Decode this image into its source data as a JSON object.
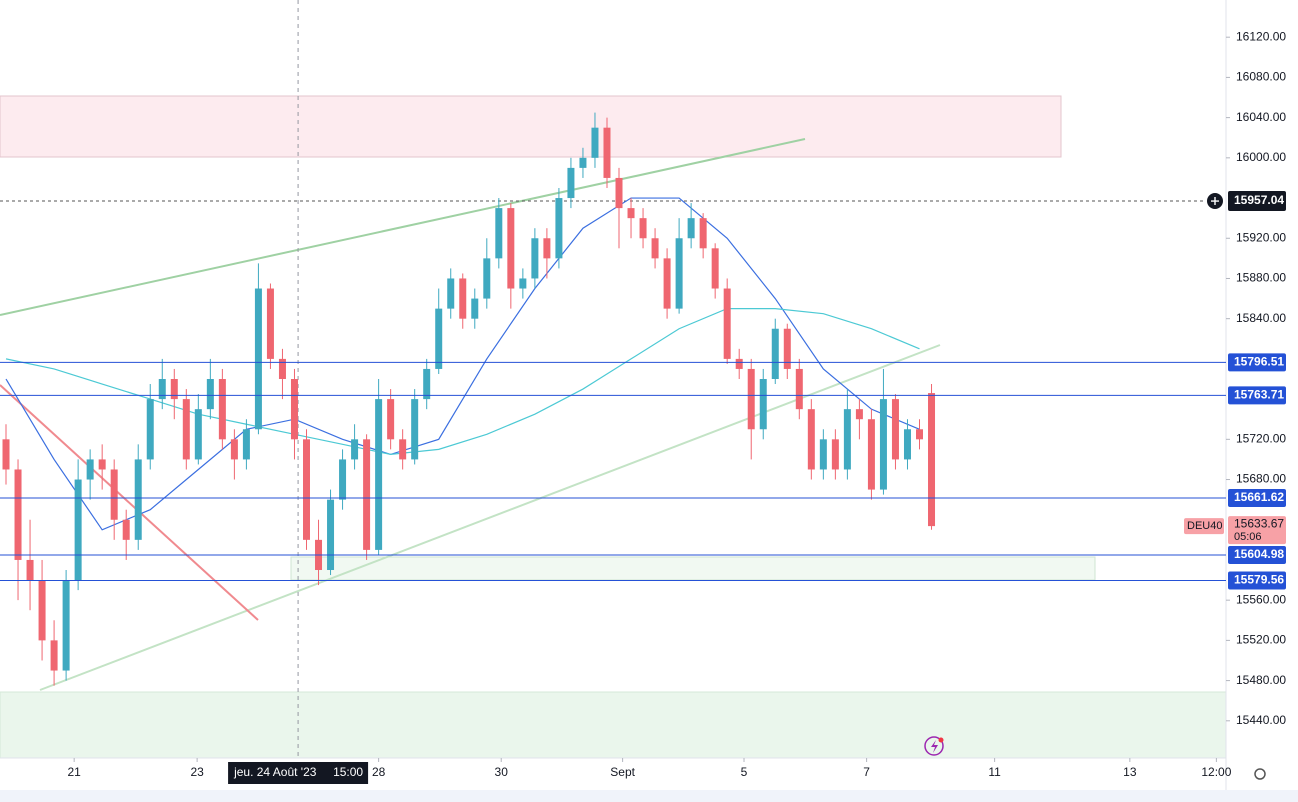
{
  "chart_data": {
    "type": "candlestick",
    "open": [
      15720,
      15690,
      15600,
      15580,
      15520,
      15490,
      15580,
      15680,
      15700,
      15690,
      15640,
      15620,
      15700,
      15760,
      15780,
      15760,
      15700,
      15750,
      15780,
      15720,
      15700,
      15730,
      15870,
      15800,
      15780,
      15720,
      15620,
      15590,
      15660,
      15700,
      15720,
      15610,
      15760,
      15720,
      15700,
      15760,
      15790,
      15850,
      15880,
      15840,
      15860,
      15900,
      15950,
      15870,
      15880,
      15920,
      15900,
      15960,
      15990,
      16000,
      16030,
      15980,
      15950,
      15940,
      15920,
      15900,
      15850,
      15920,
      15940,
      15910,
      15870,
      15800,
      15790,
      15730,
      15780,
      15830,
      15790,
      15750,
      15690,
      15720,
      15690,
      15750,
      15740,
      15670,
      15760,
      15700,
      15730,
      15766
    ],
    "high": [
      15735,
      15700,
      15640,
      15600,
      15540,
      15590,
      15700,
      15710,
      15715,
      15700,
      15650,
      15715,
      15775,
      15800,
      15790,
      15770,
      15765,
      15800,
      15790,
      15730,
      15740,
      15895,
      15875,
      15810,
      15790,
      15730,
      15640,
      15670,
      15710,
      15735,
      15725,
      15780,
      15770,
      15730,
      15770,
      15800,
      15870,
      15890,
      15885,
      15870,
      15920,
      15960,
      15955,
      15890,
      15930,
      15930,
      15970,
      16000,
      16010,
      16045,
      16040,
      15990,
      15960,
      15950,
      15930,
      15910,
      15940,
      15955,
      15945,
      15915,
      15880,
      15810,
      15800,
      15790,
      15840,
      15835,
      15800,
      15760,
      15730,
      15730,
      15770,
      15760,
      15750,
      15790,
      15765,
      15740,
      15740,
      15775
    ],
    "low": [
      15675,
      15560,
      15550,
      15500,
      15475,
      15480,
      15570,
      15660,
      15670,
      15620,
      15600,
      15610,
      15690,
      15750,
      15740,
      15690,
      15695,
      15740,
      15710,
      15680,
      15690,
      15725,
      15790,
      15760,
      15700,
      15610,
      15575,
      15585,
      15650,
      15690,
      15600,
      15605,
      15710,
      15690,
      15695,
      15750,
      15785,
      15840,
      15830,
      15830,
      15850,
      15890,
      15850,
      15860,
      15870,
      15880,
      15890,
      15950,
      15980,
      15990,
      15970,
      15910,
      15920,
      15910,
      15890,
      15840,
      15845,
      15910,
      15900,
      15860,
      15795,
      15780,
      15700,
      15720,
      15775,
      15780,
      15740,
      15680,
      15680,
      15680,
      15680,
      15720,
      15660,
      15665,
      15690,
      15690,
      15710,
      15630
    ],
    "close": [
      15690,
      15600,
      15580,
      15520,
      15490,
      15580,
      15680,
      15700,
      15690,
      15640,
      15620,
      15700,
      15760,
      15780,
      15760,
      15700,
      15750,
      15780,
      15720,
      15700,
      15730,
      15870,
      15800,
      15780,
      15720,
      15620,
      15590,
      15660,
      15700,
      15720,
      15610,
      15760,
      15720,
      15700,
      15760,
      15790,
      15850,
      15880,
      15840,
      15860,
      15900,
      15950,
      15870,
      15880,
      15920,
      15900,
      15960,
      15990,
      16000,
      16030,
      15980,
      15950,
      15940,
      15920,
      15900,
      15850,
      15920,
      15940,
      15910,
      15870,
      15800,
      15790,
      15730,
      15780,
      15830,
      15790,
      15750,
      15690,
      15720,
      15690,
      15750,
      15740,
      15670,
      15760,
      15700,
      15730,
      15720,
      15633.67
    ],
    "up_color": "#3fa9c0",
    "down_color": "#ef6670",
    "series": [
      {
        "color": "#3b6fe0",
        "x": [
          0,
          4,
          8,
          12,
          16,
          20,
          24,
          28,
          32,
          36,
          40,
          44,
          48,
          52,
          56,
          60,
          64,
          68,
          72,
          76
        ],
        "values": [
          15780,
          15700,
          15630,
          15650,
          15690,
          15730,
          15740,
          15720,
          15705,
          15720,
          15800,
          15870,
          15930,
          15960,
          15960,
          15920,
          15860,
          15790,
          15750,
          15730
        ]
      },
      {
        "color": "#4cc9d4",
        "x": [
          0,
          4,
          8,
          12,
          16,
          20,
          24,
          28,
          32,
          36,
          40,
          44,
          48,
          52,
          56,
          60,
          64,
          68,
          72,
          76
        ],
        "values": [
          15800,
          15790,
          15775,
          15760,
          15745,
          15735,
          15725,
          15715,
          15705,
          15710,
          15725,
          15745,
          15770,
          15800,
          15830,
          15850,
          15850,
          15845,
          15830,
          15810
        ]
      }
    ],
    "hlines": [
      15796.51,
      15763.71,
      15661.62,
      15604.98,
      15579.56
    ],
    "hline_color": "#2451d6",
    "marker_price": 15957.04,
    "last_price": 15633.67,
    "symbol": "DEU40",
    "countdown": "05:06",
    "xlim": [
      -0.5,
      101.5
    ],
    "xticks": [
      {
        "value": 5.67,
        "label": "21"
      },
      {
        "value": 15.9,
        "label": "23"
      },
      {
        "value": 31,
        "label": "28"
      },
      {
        "value": 41.2,
        "label": "30"
      },
      {
        "value": 51.3,
        "label": "Sept"
      },
      {
        "value": 61.4,
        "label": "5"
      },
      {
        "value": 71.6,
        "label": "7"
      },
      {
        "value": 82.25,
        "label": "11"
      },
      {
        "value": 93.5,
        "label": "13"
      },
      {
        "value": 100.7,
        "label": "12:00"
      }
    ],
    "crosshair": {
      "x": 24.3,
      "date": "jeu. 24 Août '23",
      "time": "15:00"
    },
    "ylim": [
      15403,
      16157
    ],
    "yticks": [
      {
        "value": 16120,
        "label": "16120.00"
      },
      {
        "value": 16080,
        "label": "16080.00"
      },
      {
        "value": 16040,
        "label": "16040.00"
      },
      {
        "value": 16000,
        "label": "16000.00"
      },
      {
        "value": 15920,
        "label": "15920.00"
      },
      {
        "value": 15880,
        "label": "15880.00"
      },
      {
        "value": 15840,
        "label": "15840.00"
      },
      {
        "value": 15720,
        "label": "15720.00"
      },
      {
        "value": 15680,
        "label": "15680.00"
      },
      {
        "value": 15560,
        "label": "15560.00"
      },
      {
        "value": 15520,
        "label": "15520.00"
      },
      {
        "value": 15480,
        "label": "15480.00"
      },
      {
        "value": 15440,
        "label": "15440.00"
      }
    ]
  }
}
